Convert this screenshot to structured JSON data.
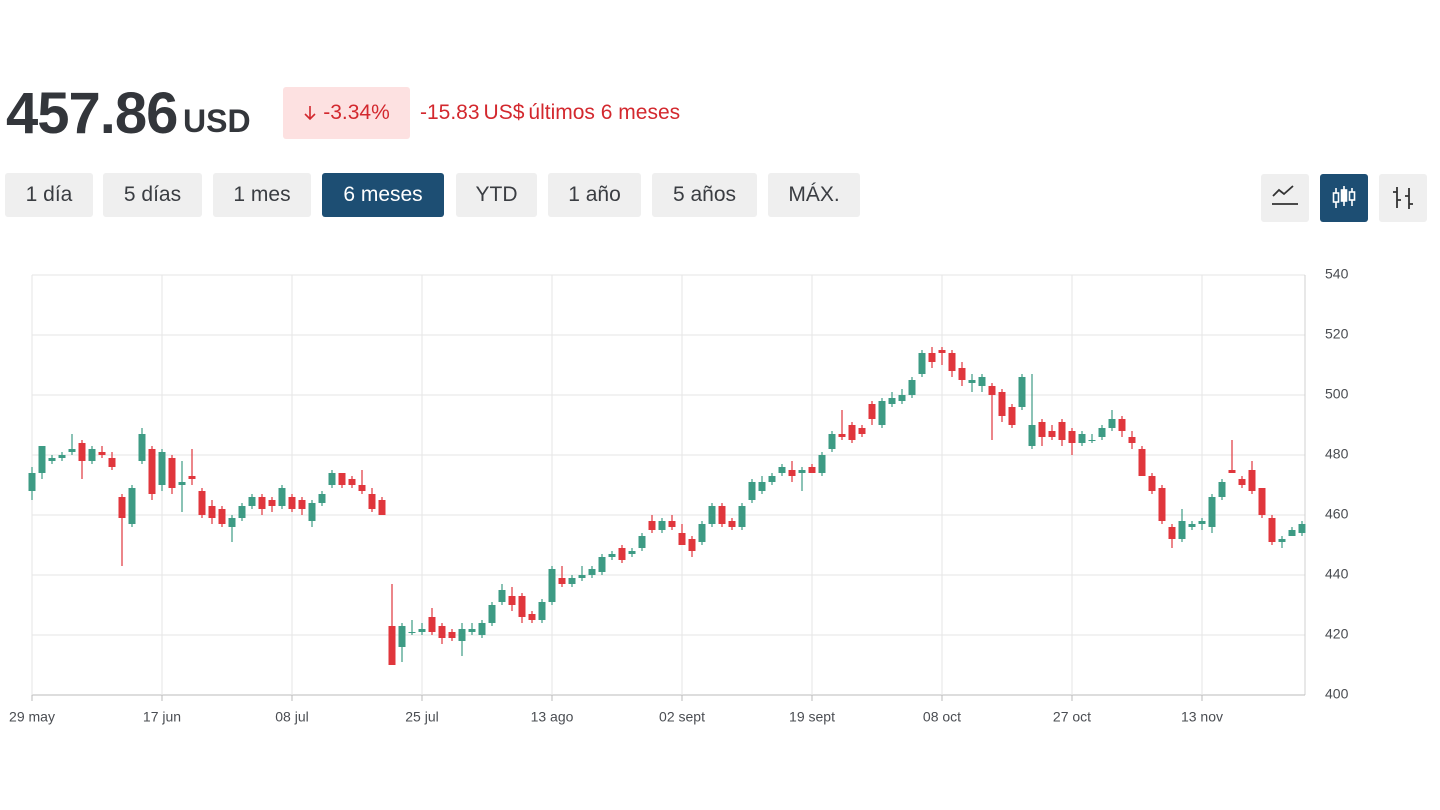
{
  "header": {
    "price": "457.86",
    "currency": "USD",
    "change_pct": "-3.34%",
    "change_abs": "-15.83",
    "change_unit": "US$",
    "change_period": "últimos 6 meses"
  },
  "ranges": [
    "1 día",
    "5 días",
    "1 mes",
    "6 meses",
    "YTD",
    "1 año",
    "5 años",
    "MÁX."
  ],
  "selected_range": "6 meses",
  "chart_style": "candlestick",
  "chart_data": {
    "type": "candlestick",
    "categories": [
      "29 may",
      null,
      null,
      null,
      null,
      null,
      null,
      null,
      null,
      null,
      null,
      null,
      null,
      "17 jun",
      null,
      null,
      null,
      null,
      null,
      null,
      null,
      null,
      null,
      null,
      null,
      null,
      "08 jul",
      null,
      null,
      null,
      null,
      null,
      null,
      null,
      null,
      null,
      null,
      null,
      null,
      "25 jul",
      null,
      null,
      null,
      null,
      null,
      null,
      null,
      null,
      null,
      null,
      null,
      null,
      "13 ago",
      null,
      null,
      null,
      null,
      null,
      null,
      null,
      null,
      null,
      null,
      null,
      null,
      "02 sept",
      null,
      null,
      null,
      null,
      null,
      null,
      null,
      null,
      null,
      null,
      null,
      null,
      "19 sept",
      null,
      null,
      null,
      null,
      null,
      null,
      null,
      null,
      null,
      null,
      null,
      null,
      "08 oct",
      null,
      null,
      null,
      null,
      null,
      null,
      null,
      null,
      null,
      null,
      null,
      null,
      "27 oct",
      null,
      null,
      null,
      null,
      null,
      null,
      null,
      null,
      null,
      null,
      null,
      null,
      "13 nov",
      null,
      null,
      null,
      null,
      null,
      null,
      null,
      null,
      null,
      null
    ],
    "open": [
      468,
      474,
      478,
      479,
      481,
      484,
      478,
      481,
      479,
      466,
      457,
      478,
      482,
      470,
      479,
      470,
      473,
      468,
      463,
      462,
      456,
      459,
      463,
      466,
      465,
      463,
      466,
      465,
      458,
      464,
      470,
      474,
      472,
      470,
      467,
      465,
      423,
      416,
      421,
      421,
      426,
      423,
      421,
      418,
      421,
      420,
      424,
      431,
      433,
      433,
      427,
      425,
      431,
      439,
      437,
      439,
      440,
      441,
      446,
      449,
      447,
      449,
      458,
      455,
      458,
      454,
      452,
      451,
      457,
      463,
      458,
      456,
      465,
      468,
      471,
      474,
      475,
      474,
      476,
      474,
      482,
      487,
      490,
      489,
      497,
      490,
      497,
      498,
      500,
      507,
      514,
      515,
      514,
      509,
      504,
      503,
      503,
      501,
      496,
      496,
      483,
      491,
      488,
      491,
      488,
      484,
      485,
      486,
      489,
      492,
      486,
      482,
      473,
      469,
      456,
      452,
      456,
      457,
      456,
      466,
      475,
      472,
      475,
      469,
      459,
      451,
      453,
      454
    ],
    "high": [
      476,
      483,
      480,
      481,
      487,
      485,
      483,
      483,
      481,
      467,
      470,
      489,
      483,
      482,
      480,
      478,
      482,
      469,
      465,
      463,
      460,
      464,
      467,
      467,
      466,
      470,
      467,
      466,
      465,
      468,
      475,
      474,
      473,
      475,
      469,
      466,
      437,
      424,
      425,
      424,
      429,
      424,
      422,
      424,
      424,
      425,
      431,
      437,
      436,
      434,
      428,
      432,
      443,
      443,
      440,
      443,
      443,
      447,
      448,
      450,
      449,
      454,
      460,
      459,
      460,
      457,
      453,
      458,
      464,
      464,
      459,
      464,
      472,
      473,
      474,
      477,
      478,
      476,
      477,
      481,
      488,
      495,
      491,
      490,
      498,
      499,
      501,
      502,
      506,
      515,
      516,
      516,
      515,
      511,
      507,
      507,
      504,
      502,
      497,
      507,
      507,
      492,
      490,
      492,
      489,
      488,
      487,
      490,
      495,
      493,
      488,
      483,
      474,
      470,
      457,
      462,
      458,
      459,
      467,
      472,
      485,
      473,
      478,
      469,
      460,
      453,
      456,
      458
    ],
    "low": [
      465,
      472,
      477,
      478,
      480,
      472,
      477,
      479,
      475,
      443,
      456,
      477,
      465,
      468,
      467,
      461,
      470,
      459,
      457,
      456,
      451,
      458,
      462,
      460,
      461,
      462,
      461,
      460,
      456,
      463,
      469,
      469,
      469,
      467,
      461,
      460,
      410,
      411,
      420,
      420,
      420,
      417,
      418,
      413,
      420,
      419,
      423,
      430,
      428,
      424,
      424,
      424,
      430,
      436,
      436,
      438,
      439,
      440,
      445,
      444,
      446,
      448,
      454,
      454,
      455,
      450,
      446,
      450,
      456,
      456,
      455,
      455,
      464,
      467,
      470,
      473,
      471,
      468,
      474,
      473,
      481,
      485,
      484,
      486,
      490,
      489,
      496,
      497,
      499,
      506,
      509,
      510,
      506,
      503,
      501,
      501,
      485,
      491,
      489,
      495,
      482,
      483,
      485,
      483,
      480,
      483,
      484,
      485,
      488,
      486,
      482,
      473,
      467,
      457,
      449,
      451,
      455,
      455,
      454,
      465,
      474,
      469,
      467,
      459,
      450,
      449,
      453,
      453
    ],
    "close": [
      474,
      483,
      479,
      480,
      482,
      478,
      482,
      480,
      476,
      459,
      469,
      487,
      467,
      481,
      469,
      471,
      472,
      460,
      459,
      457,
      459,
      463,
      466,
      462,
      463,
      469,
      462,
      462,
      464,
      467,
      474,
      470,
      470,
      468,
      462,
      460,
      410,
      423,
      421,
      422,
      421,
      419,
      419,
      422,
      422,
      424,
      430,
      435,
      430,
      426,
      425,
      431,
      442,
      437,
      439,
      440,
      442,
      446,
      447,
      445,
      448,
      453,
      455,
      458,
      456,
      450,
      448,
      457,
      463,
      457,
      456,
      463,
      471,
      471,
      473,
      476,
      473,
      475,
      474,
      480,
      487,
      486,
      485,
      487,
      492,
      498,
      499,
      500,
      505,
      514,
      511,
      514,
      508,
      505,
      505,
      506,
      500,
      493,
      490,
      506,
      490,
      486,
      486,
      485,
      484,
      487,
      485,
      489,
      492,
      488,
      484,
      473,
      468,
      458,
      452,
      458,
      457,
      458,
      466,
      471,
      474,
      470,
      468,
      460,
      451,
      452,
      455,
      457
    ],
    "up_color": "#3d9b84",
    "down_color": "#e0363c",
    "ylim": [
      400,
      540
    ],
    "yticks": [
      400,
      420,
      440,
      460,
      480,
      500,
      520,
      540
    ],
    "grid": true
  }
}
